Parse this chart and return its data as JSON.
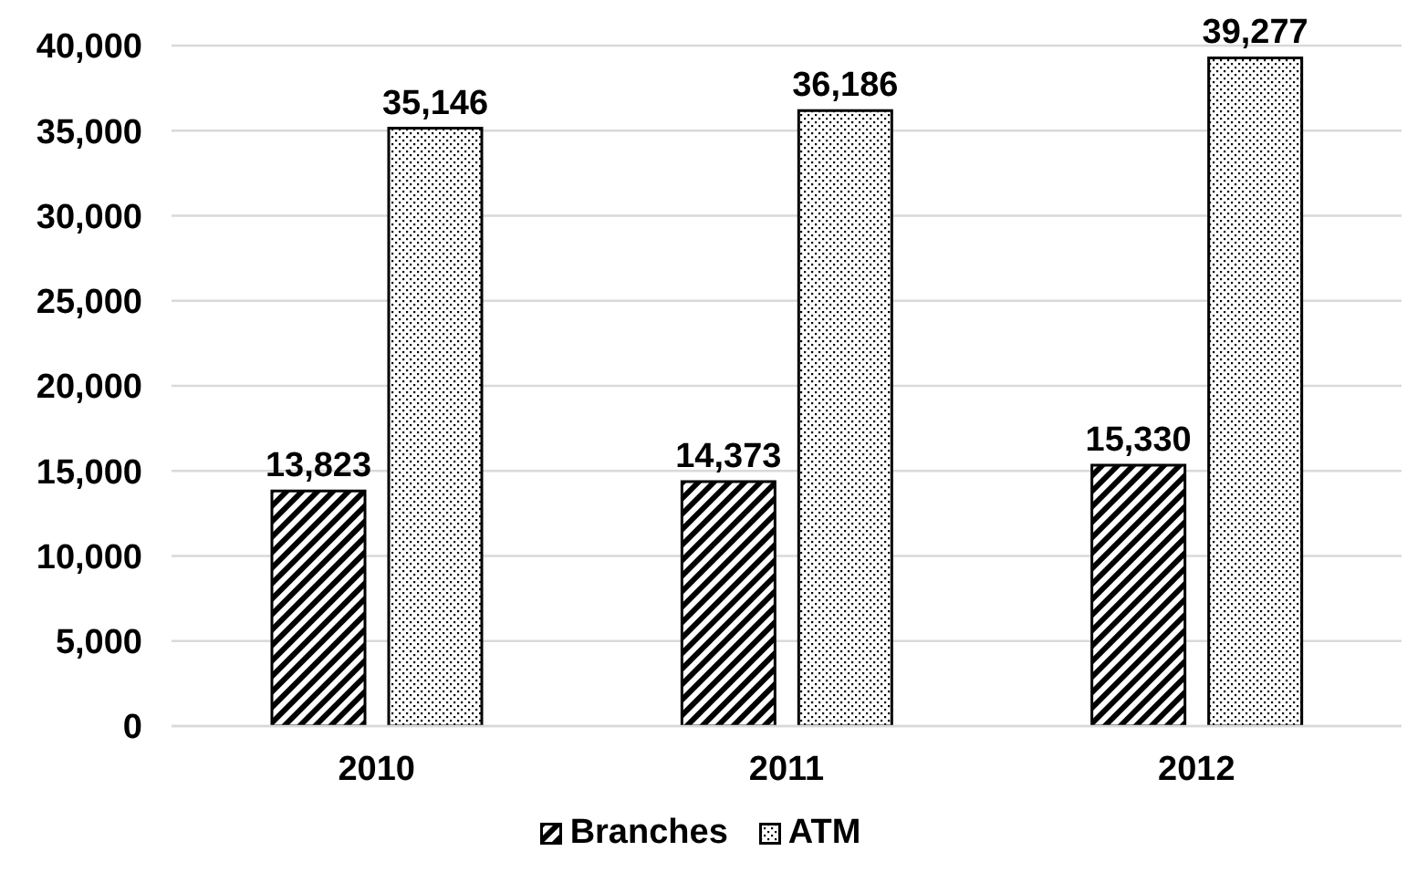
{
  "chart_data": {
    "type": "bar",
    "categories": [
      "2010",
      "2011",
      "2012"
    ],
    "series": [
      {
        "name": "Branches",
        "color": "#000000",
        "values": [
          13823,
          14373,
          15330
        ],
        "value_labels": [
          "13,823",
          "14,373",
          "15,330"
        ]
      },
      {
        "name": "ATM",
        "color": "#000000",
        "values": [
          35146,
          36186,
          39277
        ],
        "value_labels": [
          "35,146",
          "36,186",
          "39,277"
        ]
      }
    ],
    "ylim": [
      0,
      40000
    ],
    "yticks": [
      0,
      {
        "value": 5000,
        "label": "5,000"
      },
      {
        "value": 10000,
        "label": "10,000"
      },
      {
        "value": 15000,
        "label": "15,000"
      },
      {
        "value": 20000,
        "label": "20,000"
      },
      {
        "value": 25000,
        "label": "25,000"
      },
      {
        "value": 30000,
        "label": "30,000"
      },
      {
        "value": 35000,
        "label": "35,000"
      },
      {
        "value": 40000,
        "label": "40,000"
      }
    ],
    "grid": "y",
    "legend": "bottom"
  }
}
